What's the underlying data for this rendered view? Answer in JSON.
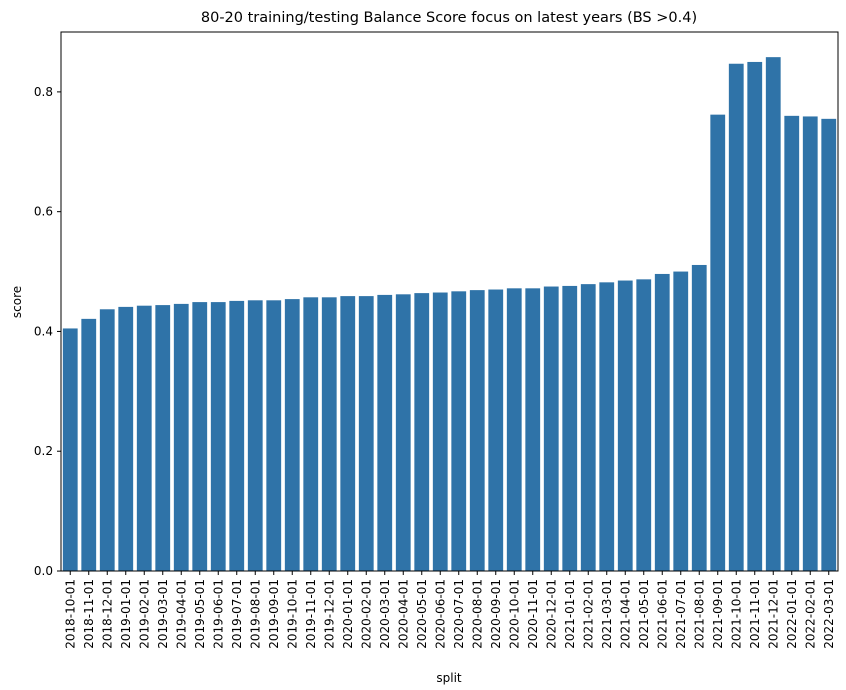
{
  "chart_data": {
    "type": "bar",
    "title": "80-20 training/testing Balance Score focus on latest years (BS >0.4)",
    "xlabel": "split",
    "ylabel": "score",
    "ylim": [
      0,
      0.9
    ],
    "yticks": [
      "0.0",
      "0.2",
      "0.4",
      "0.6",
      "0.8"
    ],
    "grid": false,
    "bar_color": "#2f73a8",
    "categories": [
      "2018-10-01",
      "2018-11-01",
      "2018-12-01",
      "2019-01-01",
      "2019-02-01",
      "2019-03-01",
      "2019-04-01",
      "2019-05-01",
      "2019-06-01",
      "2019-07-01",
      "2019-08-01",
      "2019-09-01",
      "2019-10-01",
      "2019-11-01",
      "2019-12-01",
      "2020-01-01",
      "2020-02-01",
      "2020-03-01",
      "2020-04-01",
      "2020-05-01",
      "2020-06-01",
      "2020-07-01",
      "2020-08-01",
      "2020-09-01",
      "2020-10-01",
      "2020-11-01",
      "2020-12-01",
      "2021-01-01",
      "2021-02-01",
      "2021-03-01",
      "2021-04-01",
      "2021-05-01",
      "2021-06-01",
      "2021-07-01",
      "2021-08-01",
      "2021-09-01",
      "2021-10-01",
      "2021-11-01",
      "2021-12-01",
      "2022-01-01",
      "2022-02-01",
      "2022-03-01"
    ],
    "values": [
      0.405,
      0.421,
      0.437,
      0.441,
      0.443,
      0.444,
      0.446,
      0.449,
      0.449,
      0.451,
      0.452,
      0.452,
      0.454,
      0.457,
      0.457,
      0.459,
      0.459,
      0.461,
      0.462,
      0.464,
      0.465,
      0.467,
      0.469,
      0.47,
      0.472,
      0.472,
      0.475,
      0.476,
      0.479,
      0.482,
      0.485,
      0.487,
      0.496,
      0.5,
      0.511,
      0.762,
      0.847,
      0.85,
      0.858,
      0.76,
      0.759,
      0.755
    ]
  }
}
